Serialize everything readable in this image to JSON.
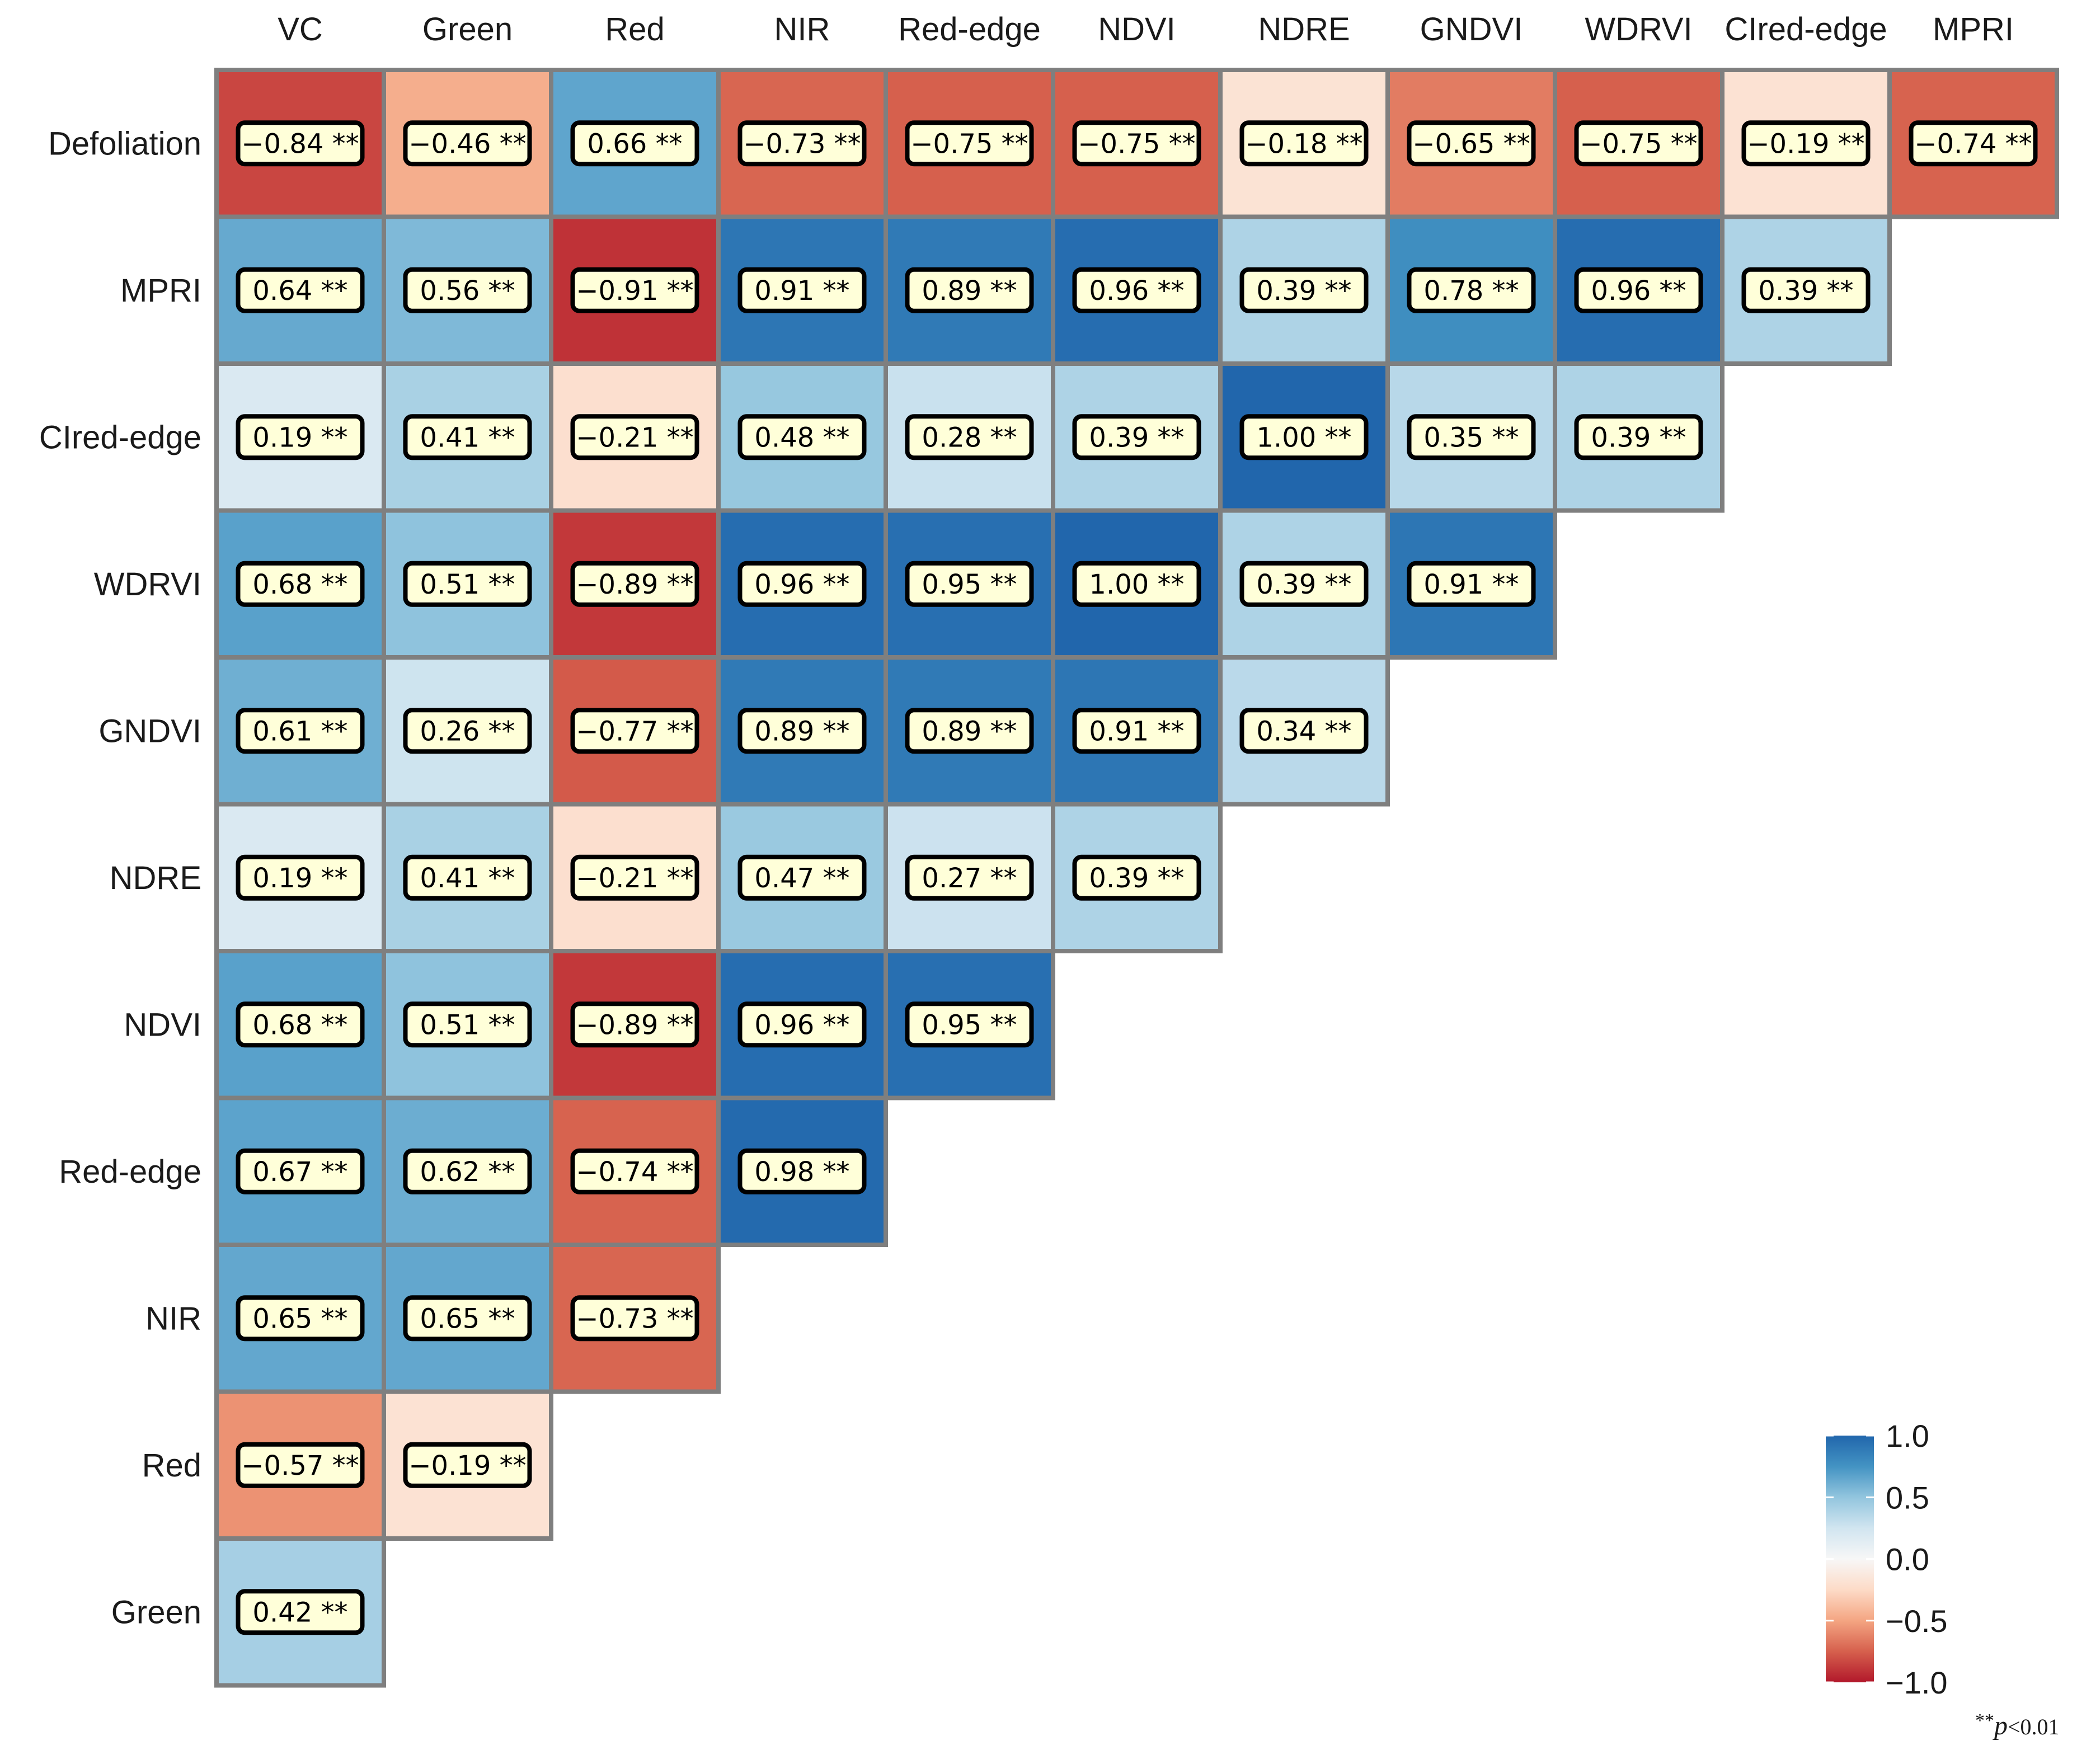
{
  "chart_data": {
    "type": "heatmap",
    "title": "",
    "columns": [
      "VC",
      "Green",
      "Red",
      "NIR",
      "Red-edge",
      "NDVI",
      "NDRE",
      "GNDVI",
      "WDRVI",
      "CIred-edge",
      "MPRI"
    ],
    "rows": [
      "Defoliation",
      "MPRI",
      "CIred-edge",
      "WDRVI",
      "GNDVI",
      "NDRE",
      "NDVI",
      "Red-edge",
      "NIR",
      "Red",
      "Green"
    ],
    "values": [
      [
        -0.84,
        -0.46,
        0.66,
        -0.73,
        -0.75,
        -0.75,
        -0.18,
        -0.65,
        -0.75,
        -0.19,
        -0.74
      ],
      [
        0.64,
        0.56,
        -0.91,
        0.91,
        0.89,
        0.96,
        0.39,
        0.78,
        0.96,
        0.39
      ],
      [
        0.19,
        0.41,
        -0.21,
        0.48,
        0.28,
        0.39,
        1.0,
        0.35,
        0.39
      ],
      [
        0.68,
        0.51,
        -0.89,
        0.96,
        0.95,
        1.0,
        0.39,
        0.91
      ],
      [
        0.61,
        0.26,
        -0.77,
        0.89,
        0.89,
        0.91,
        0.34
      ],
      [
        0.19,
        0.41,
        -0.21,
        0.47,
        0.27,
        0.39
      ],
      [
        0.68,
        0.51,
        -0.89,
        0.96,
        0.95
      ],
      [
        0.67,
        0.62,
        -0.74,
        0.98
      ],
      [
        0.65,
        0.65,
        -0.73
      ],
      [
        -0.57,
        -0.19
      ],
      [
        0.42
      ]
    ],
    "significance": "**",
    "color_scale": {
      "min": -1.0,
      "max": 1.0,
      "ticks": [
        "1.0",
        "0.5",
        "0.0",
        "−0.5",
        "−1.0"
      ],
      "colors": [
        "#b2182b",
        "#d6604d",
        "#f4a582",
        "#fddbc7",
        "#f7f7f7",
        "#d1e5f0",
        "#92c5de",
        "#4393c3",
        "#2166ac"
      ]
    },
    "legend_position": "bottom-right",
    "footnote": {
      "stars": "**",
      "p_symbol": "p",
      "threshold": "<0.01"
    }
  },
  "styles": {
    "cell_border": "#7f7f7f",
    "label_fill": "#ffffd9",
    "label_border": "#000000"
  }
}
